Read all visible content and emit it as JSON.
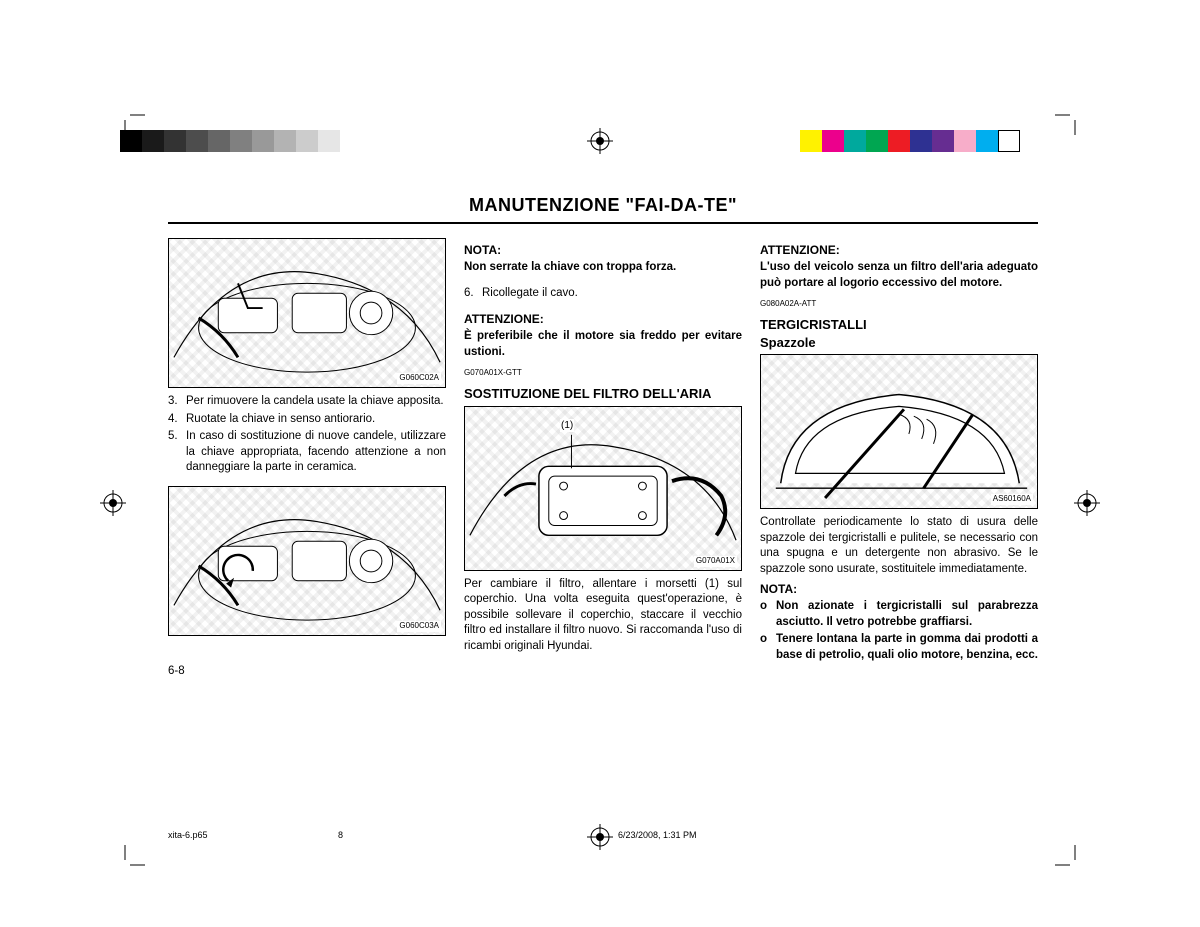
{
  "colorbar_left": [
    "#000000",
    "#1a1a1a",
    "#333333",
    "#4d4d4d",
    "#666666",
    "#808080",
    "#999999",
    "#b3b3b3",
    "#cccccc",
    "#e6e6e6"
  ],
  "colorbar_right": [
    "#fff200",
    "#ec008c",
    "#00a99d",
    "#00a651",
    "#ed1c24",
    "#2e3192",
    "#662d91",
    "#f7adc9",
    "#00aeef",
    "#ffffff"
  ],
  "title": "MANUTENZIONE \"FAI-DA-TE\"",
  "col1": {
    "fig1_code": "G060C02A",
    "list": [
      {
        "n": "3.",
        "t": "Per rimuovere la candela usate la chiave apposita."
      },
      {
        "n": "4.",
        "t": "Ruotate la chiave in senso antiorario."
      },
      {
        "n": "5.",
        "t": "In caso di sostituzione di nuove candele, utilizzare la chiave appropriata, facendo attenzione a non danneggiare la parte in ceramica."
      }
    ],
    "fig2_code": "G060C03A"
  },
  "col2": {
    "nota_h": "NOTA:",
    "nota_t": "Non serrate la chiave con troppa forza.",
    "item6": {
      "n": "6.",
      "t": "Ricollegate il cavo."
    },
    "att_h": "ATTENZIONE:",
    "att_t": "È preferibile che il motore sia freddo per evitare ustioni.",
    "code": "G070A01X-GTT",
    "sost_h": "SOSTITUZIONE DEL FILTRO DELL'ARIA",
    "callout": "(1)",
    "fig_code": "G070A01X",
    "para": "Per cambiare il filtro, allentare i morsetti (1) sul coperchio. Una volta eseguita quest'operazione, è possibile sollevare il coperchio, staccare il vecchio filtro ed installare il filtro nuovo. Si raccomanda l'uso di ricambi originali Hyundai."
  },
  "col3": {
    "att_h": "ATTENZIONE:",
    "att_t": "L'uso del veicolo senza un filtro dell'aria adeguato può portare al logorio eccessivo del motore.",
    "code": "G080A02A-ATT",
    "terg_h1": "TERGICRISTALLI",
    "terg_h2": "Spazzole",
    "fig_code": "AS60160A",
    "para": "Controllate periodicamente lo stato di usura delle spazzole dei tergicristalli e pulitele, se necessario con una spugna e un detergente non abrasivo. Se le spazzole sono usurate, sostituitele immediatamente.",
    "nota_h": "NOTA:",
    "bullets": [
      "Non azionate i tergicristalli sul parabrezza asciutto. Il vetro potrebbe graffiarsi.",
      "Tenere lontana la parte in gomma dai prodotti a base di petrolio, quali olio motore, benzina, ecc."
    ]
  },
  "pagenum": "6-8",
  "footer": {
    "file": "xita-6.p65",
    "page": "8",
    "date": "6/23/2008, 1:31 PM"
  }
}
